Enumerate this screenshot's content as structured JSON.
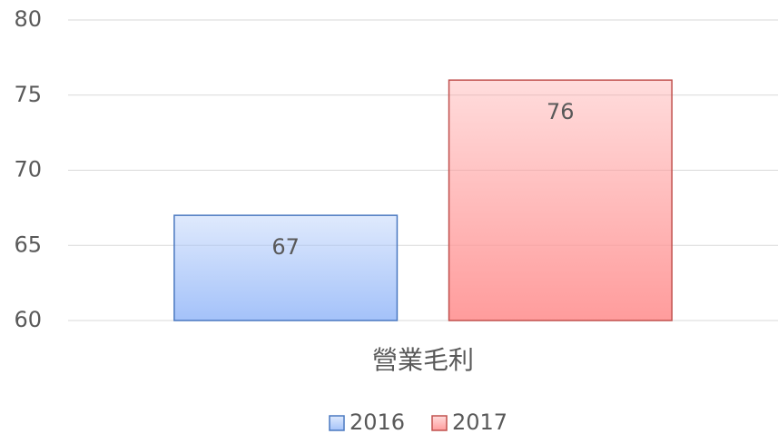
{
  "chart_data": {
    "type": "bar",
    "categories": [
      "營業毛利"
    ],
    "series": [
      {
        "name": "2016",
        "color": "#a4c2f9",
        "values": [
          67
        ]
      },
      {
        "name": "2017",
        "color": "#ff9c9c",
        "values": [
          76
        ]
      }
    ],
    "ylim": [
      60,
      80
    ],
    "yticks": [
      60,
      65,
      70,
      75,
      80
    ],
    "grid": true,
    "legend": "bottom"
  }
}
